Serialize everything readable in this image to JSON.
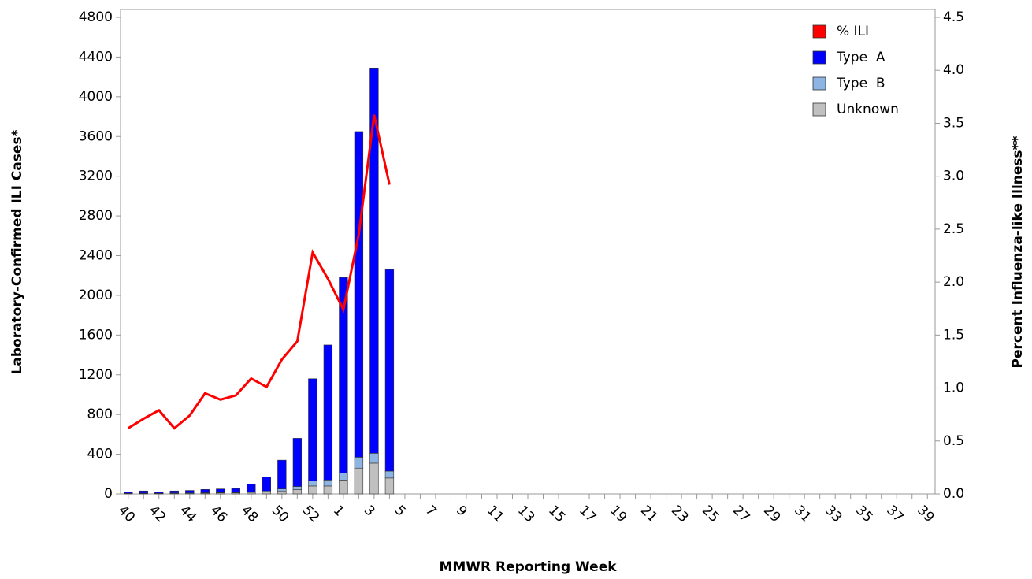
{
  "chart_data": {
    "type": "bar-line",
    "x_label": "MMWR Reporting Week",
    "y_label": "Laboratory-Confirmed ILI Cases*",
    "y2_label": "Percent Influenza-like Illness**",
    "categories": [
      "40",
      null,
      "42",
      null,
      "44",
      null,
      "46",
      null,
      "48",
      null,
      "50",
      null,
      "52",
      null,
      "1",
      null,
      "3",
      null,
      "5",
      null,
      "7",
      null,
      "9",
      null,
      "11",
      null,
      "13",
      null,
      "15",
      null,
      "17",
      null,
      "19",
      null,
      "21",
      null,
      "23",
      null,
      "25",
      null,
      "27",
      null,
      "29",
      null,
      "31",
      null,
      "33",
      null,
      "35",
      null,
      "37",
      null,
      "39"
    ],
    "series": [
      {
        "name": "Unknown",
        "color": "#c0c0c0",
        "values": [
          5,
          5,
          5,
          6,
          7,
          8,
          10,
          10,
          15,
          20,
          30,
          45,
          80,
          80,
          140,
          260,
          310,
          160,
          null,
          null,
          null,
          null,
          null,
          null,
          null,
          null,
          null,
          null,
          null,
          null,
          null,
          null,
          null,
          null,
          null,
          null,
          null,
          null,
          null,
          null,
          null,
          null,
          null,
          null,
          null,
          null,
          null,
          null,
          null,
          null,
          null,
          null,
          null
        ]
      },
      {
        "name": "Type  B",
        "color": "#8eb4e3",
        "values": [
          2,
          3,
          2,
          3,
          3,
          4,
          4,
          5,
          5,
          10,
          20,
          30,
          50,
          60,
          70,
          110,
          100,
          70,
          null,
          null,
          null,
          null,
          null,
          null,
          null,
          null,
          null,
          null,
          null,
          null,
          null,
          null,
          null,
          null,
          null,
          null,
          null,
          null,
          null,
          null,
          null,
          null,
          null,
          null,
          null,
          null,
          null,
          null,
          null,
          null,
          null,
          null,
          null
        ]
      },
      {
        "name": "Type  A",
        "color": "#0000ff",
        "values": [
          13,
          22,
          13,
          21,
          25,
          33,
          36,
          40,
          80,
          140,
          290,
          485,
          1030,
          1360,
          1970,
          3280,
          3880,
          2030,
          null,
          null,
          null,
          null,
          null,
          null,
          null,
          null,
          null,
          null,
          null,
          null,
          null,
          null,
          null,
          null,
          null,
          null,
          null,
          null,
          null,
          null,
          null,
          null,
          null,
          null,
          null,
          null,
          null,
          null,
          null,
          null,
          null,
          null,
          null
        ]
      },
      {
        "name": "% ILI",
        "color": "#ff0000",
        "axis": "y2",
        "values": [
          0.62,
          0.71,
          0.79,
          0.62,
          0.74,
          0.95,
          0.89,
          0.93,
          1.09,
          1.01,
          1.27,
          1.44,
          2.28,
          2.03,
          1.74,
          2.45,
          3.58,
          2.92,
          null,
          null,
          null,
          null,
          null,
          null,
          null,
          null,
          null,
          null,
          null,
          null,
          null,
          null,
          null,
          null,
          null,
          null,
          null,
          null,
          null,
          null,
          null,
          null,
          null,
          null,
          null,
          null,
          null,
          null,
          null,
          null,
          null,
          null,
          null
        ]
      }
    ],
    "ylim": [
      0,
      4800
    ],
    "yticks": [
      0,
      400,
      800,
      1200,
      1600,
      2000,
      2400,
      2800,
      3200,
      3600,
      4000,
      4400,
      4800
    ],
    "y2lim": [
      0,
      4.5
    ],
    "y2ticks": [
      {
        "value": 0,
        "label": "0.0"
      },
      0.5,
      {
        "value": 1,
        "label": "1.0"
      },
      1.5,
      {
        "value": 2,
        "label": "2.0"
      },
      2.5,
      {
        "value": 3,
        "label": "3.0"
      },
      3.5,
      {
        "value": 4,
        "label": "4.0"
      },
      4.5
    ],
    "legend": "top-right"
  }
}
